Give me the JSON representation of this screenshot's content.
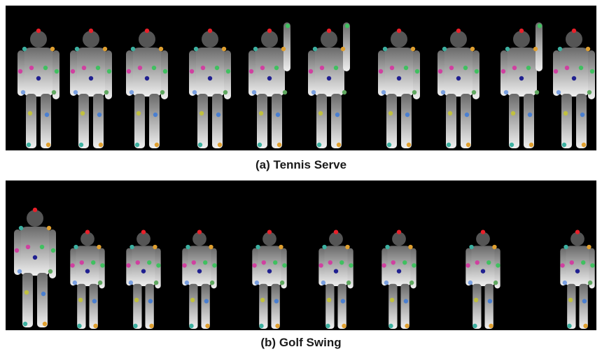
{
  "figure": {
    "captions": [
      "(a) Tennis Serve",
      "(b) Golf Swing"
    ]
  }
}
